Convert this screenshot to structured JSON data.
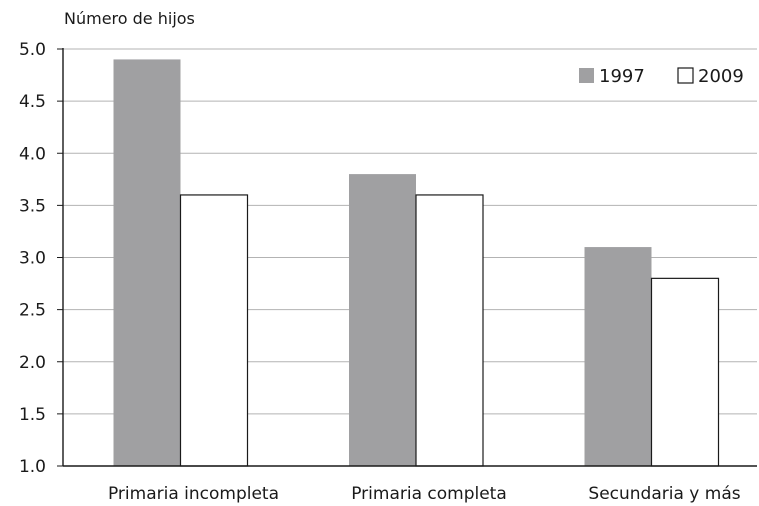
{
  "chart_data": {
    "type": "bar",
    "title": "",
    "ylabel": "Número de hijos",
    "xlabel": "",
    "categories": [
      "Primaria incompleta",
      "Primaria completa",
      "Secundaria y más"
    ],
    "series": [
      {
        "name": "1997",
        "values": [
          4.9,
          3.8,
          3.1
        ],
        "color": "#a0a0a2"
      },
      {
        "name": "2009",
        "values": [
          3.6,
          3.6,
          2.8
        ],
        "color": "#ffffff"
      }
    ],
    "ylim": [
      1.0,
      5.0
    ],
    "yticks": [
      "1.0",
      "1.5",
      "2.0",
      "2.5",
      "3.0",
      "3.5",
      "4.0",
      "4.5",
      "5.0"
    ],
    "grid": true,
    "legend_position": "top-right",
    "colors": {
      "grid": "#b3b3b3",
      "axis": "#1a1a1a",
      "bar_outline": "#1a1a1a"
    }
  }
}
